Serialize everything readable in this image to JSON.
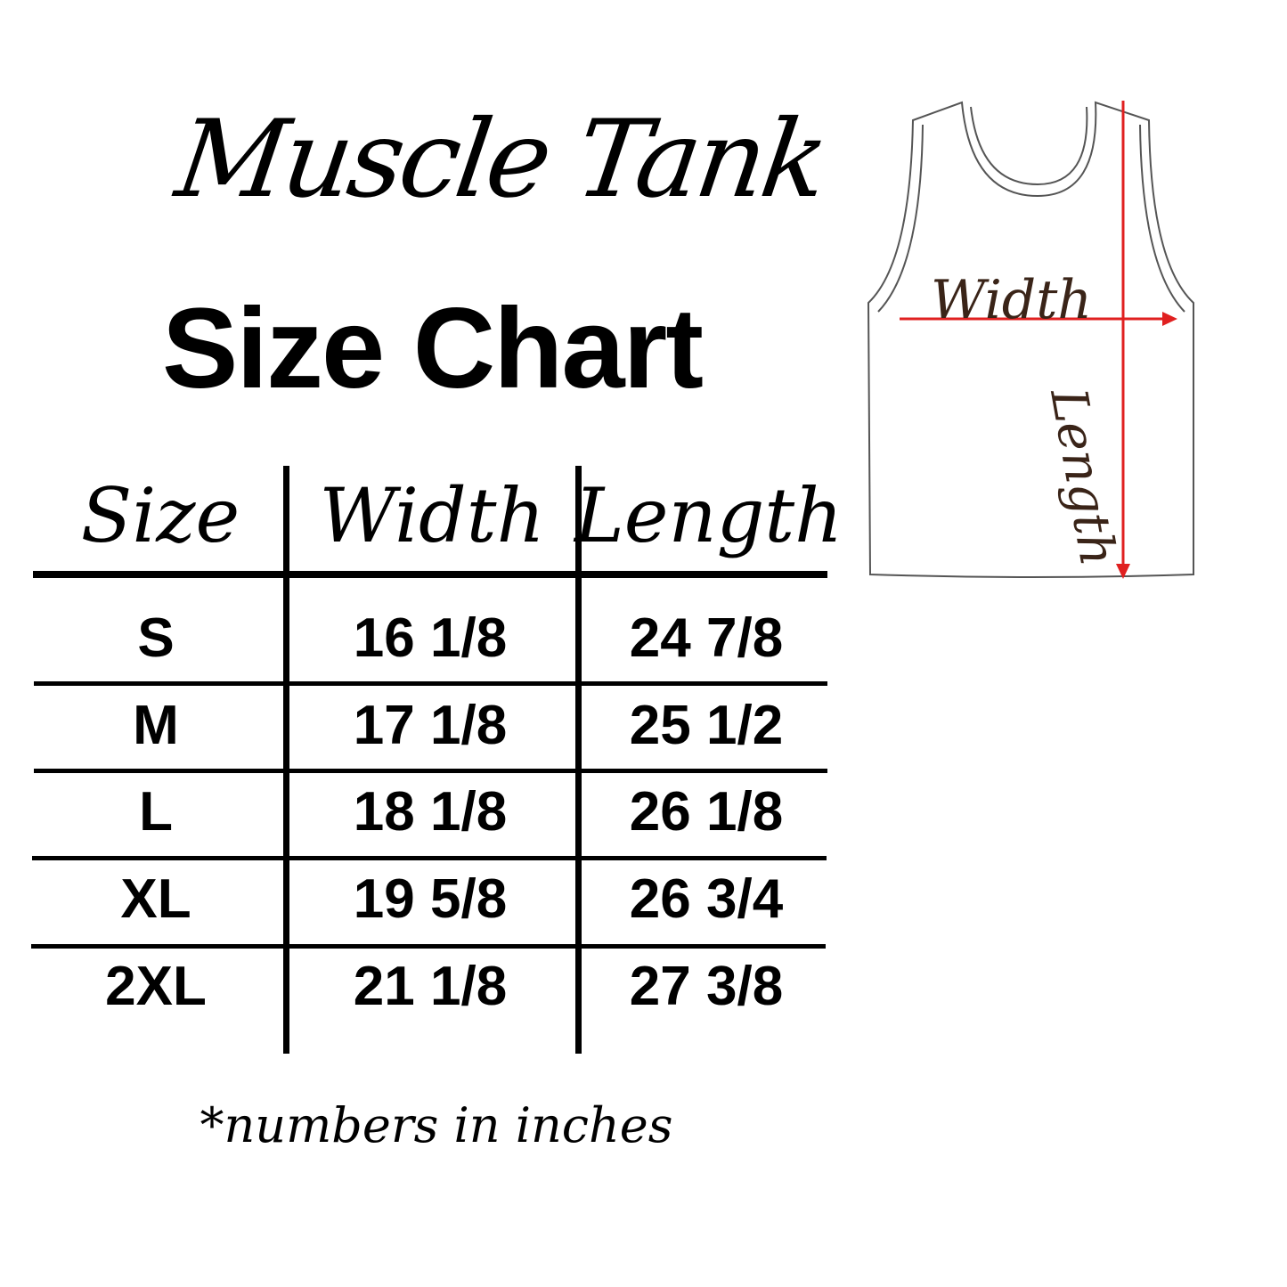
{
  "title": {
    "script": "Muscle Tank",
    "main": "Size Chart"
  },
  "table": {
    "headers": [
      "Size",
      "Width",
      "Length"
    ],
    "rows": [
      [
        "S",
        "16 1/8",
        "24 7/8"
      ],
      [
        "M",
        "17 1/8",
        "25 1/2"
      ],
      [
        "L",
        "18 1/8",
        "26 1/8"
      ],
      [
        "XL",
        "19 5/8",
        "26 3/4"
      ],
      [
        "2XL",
        "21 1/8",
        "27 3/8"
      ]
    ]
  },
  "footnote": "*numbers in inches",
  "diagram": {
    "width_label": "Width",
    "length_label": "Length",
    "arrow_color": "#e02020",
    "label_color": "#3a2418"
  }
}
